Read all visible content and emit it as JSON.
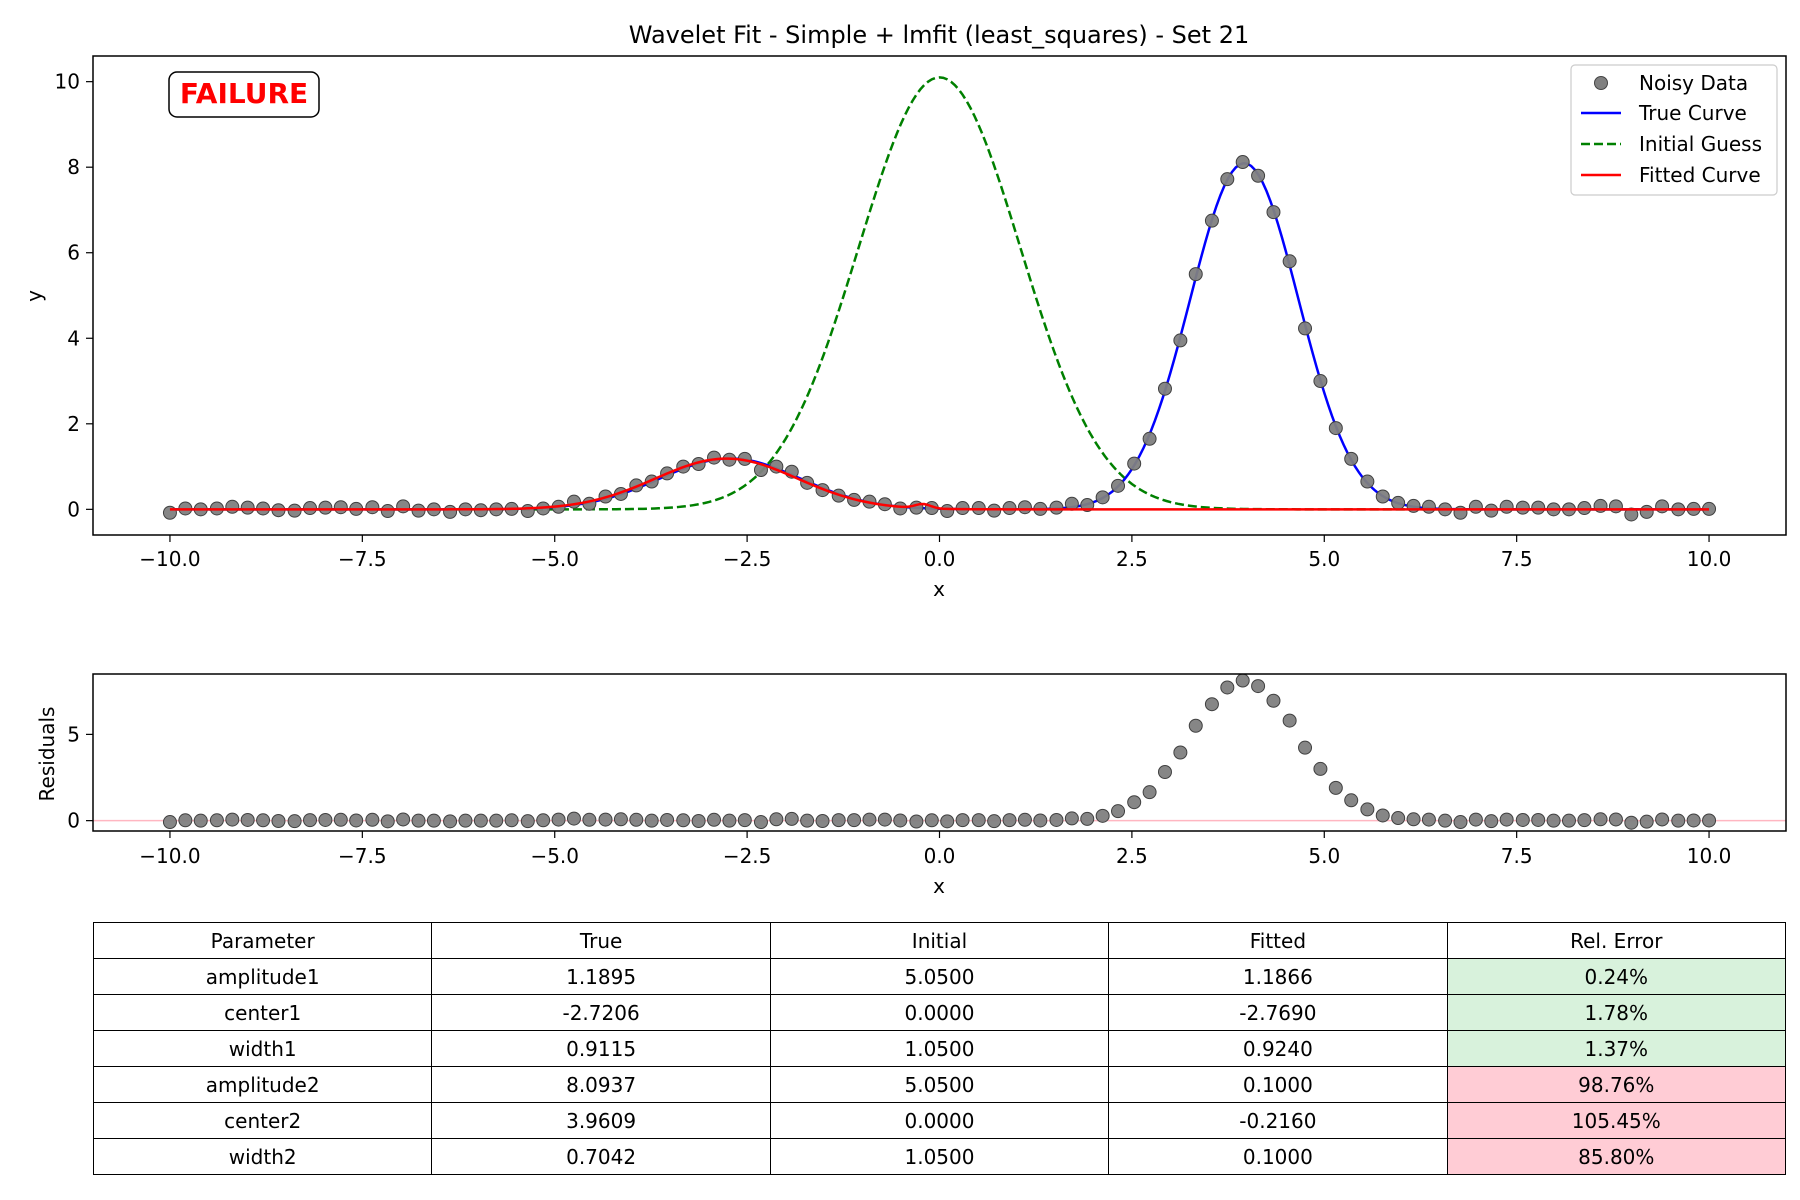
{
  "chart_data": [
    {
      "type": "line",
      "title": "Wavelet Fit - Simple + lmfit (least_squares) - Set 21",
      "xlabel": "x",
      "ylabel": "y",
      "xlim": [
        -11,
        11
      ],
      "ylim": [
        -0.6,
        10.6
      ],
      "xticks": [
        -10.0,
        -7.5,
        -5.0,
        -2.5,
        0.0,
        2.5,
        5.0,
        7.5,
        10.0
      ],
      "xtick_labels": [
        "−10.0",
        "−7.5",
        "−5.0",
        "−2.5",
        "0.0",
        "2.5",
        "5.0",
        "7.5",
        "10.0"
      ],
      "yticks": [
        0,
        2,
        4,
        6,
        8,
        10
      ],
      "ytick_labels": [
        "0",
        "2",
        "4",
        "6",
        "8",
        "10"
      ],
      "grid": false,
      "legend_position": "top-right",
      "badge": "FAILURE",
      "series": [
        {
          "name": "Noisy Data",
          "style": "scatter",
          "color": "#808080",
          "x": [
            -10.0,
            -9.8,
            -9.6,
            -9.39,
            -9.19,
            -8.99,
            -8.79,
            -8.59,
            -8.38,
            -8.18,
            -7.98,
            -7.78,
            -7.58,
            -7.37,
            -7.17,
            -6.97,
            -6.77,
            -6.57,
            -6.36,
            -6.16,
            -5.96,
            -5.76,
            -5.56,
            -5.35,
            -5.15,
            -4.95,
            -4.75,
            -4.55,
            -4.34,
            -4.14,
            -3.94,
            -3.74,
            -3.54,
            -3.33,
            -3.13,
            -2.93,
            -2.73,
            -2.53,
            -2.32,
            -2.12,
            -1.92,
            -1.72,
            -1.52,
            -1.31,
            -1.11,
            -0.91,
            -0.71,
            -0.51,
            -0.3,
            -0.1,
            0.1,
            0.3,
            0.51,
            0.71,
            0.91,
            1.11,
            1.31,
            1.52,
            1.72,
            1.92,
            2.12,
            2.32,
            2.53,
            2.73,
            2.93,
            3.13,
            3.33,
            3.54,
            3.74,
            3.94,
            4.14,
            4.34,
            4.55,
            4.75,
            4.95,
            5.15,
            5.35,
            5.56,
            5.76,
            5.96,
            6.16,
            6.36,
            6.57,
            6.77,
            6.97,
            7.17,
            7.37,
            7.58,
            7.78,
            7.98,
            8.18,
            8.38,
            8.59,
            8.79,
            8.99,
            9.19,
            9.39,
            9.6,
            9.8,
            10.0
          ],
          "y": [
            -0.08,
            0.02,
            0.0,
            0.02,
            0.06,
            0.04,
            0.02,
            -0.02,
            -0.03,
            0.03,
            0.04,
            0.05,
            0.01,
            0.05,
            -0.04,
            0.07,
            -0.03,
            0.0,
            -0.06,
            0.0,
            -0.02,
            0.0,
            0.01,
            -0.04,
            0.02,
            0.06,
            0.18,
            0.13,
            0.3,
            0.36,
            0.56,
            0.65,
            0.84,
            1.0,
            1.06,
            1.21,
            1.16,
            1.18,
            0.92,
            1.0,
            0.88,
            0.62,
            0.45,
            0.32,
            0.22,
            0.18,
            0.12,
            0.02,
            0.04,
            0.03,
            -0.04,
            0.03,
            0.03,
            -0.03,
            0.03,
            0.05,
            0.01,
            0.04,
            0.13,
            0.1,
            0.28,
            0.55,
            1.07,
            1.65,
            2.82,
            3.95,
            5.5,
            6.75,
            7.72,
            8.12,
            7.8,
            6.95,
            5.8,
            4.23,
            3.0,
            1.9,
            1.18,
            0.65,
            0.3,
            0.15,
            0.08,
            0.06,
            0.0,
            -0.08,
            0.06,
            -0.03,
            0.06,
            0.04,
            0.04,
            0.0,
            0.0,
            0.03,
            0.08,
            0.07,
            -0.12,
            -0.06,
            0.07,
            0.0,
            0.01,
            0.01
          ]
        },
        {
          "name": "True Curve",
          "style": "solid",
          "color": "#0000ff",
          "components": [
            {
              "amplitude": 1.1895,
              "center": -2.7206,
              "width": 0.9115
            },
            {
              "amplitude": 8.0937,
              "center": 3.9609,
              "width": 0.7042
            }
          ]
        },
        {
          "name": "Initial Guess",
          "style": "dashed",
          "color": "#008000",
          "components": [
            {
              "amplitude": 5.05,
              "center": 0.0,
              "width": 1.05
            },
            {
              "amplitude": 5.05,
              "center": 0.0,
              "width": 1.05
            }
          ]
        },
        {
          "name": "Fitted Curve",
          "style": "solid",
          "color": "#ff0000",
          "components": [
            {
              "amplitude": 1.1866,
              "center": -2.769,
              "width": 0.924
            },
            {
              "amplitude": 0.1,
              "center": -0.216,
              "width": 0.1
            }
          ]
        }
      ]
    },
    {
      "type": "scatter",
      "title": "",
      "xlabel": "x",
      "ylabel": "Residuals",
      "xlim": [
        -11,
        11
      ],
      "ylim": [
        -0.6,
        8.5
      ],
      "xticks": [
        -10.0,
        -7.5,
        -5.0,
        -2.5,
        0.0,
        2.5,
        5.0,
        7.5,
        10.0
      ],
      "xtick_labels": [
        "−10.0",
        "−7.5",
        "−5.0",
        "−2.5",
        "0.0",
        "2.5",
        "5.0",
        "7.5",
        "10.0"
      ],
      "yticks": [
        0,
        5
      ],
      "ytick_labels": [
        "0",
        "5"
      ],
      "grid": false,
      "reference_line": {
        "y": 0,
        "color": "#ffb6c1"
      },
      "series": [
        {
          "style": "scatter",
          "color": "#808080",
          "x": [
            -10.0,
            -9.8,
            -9.6,
            -9.39,
            -9.19,
            -8.99,
            -8.79,
            -8.59,
            -8.38,
            -8.18,
            -7.98,
            -7.78,
            -7.58,
            -7.37,
            -7.17,
            -6.97,
            -6.77,
            -6.57,
            -6.36,
            -6.16,
            -5.96,
            -5.76,
            -5.56,
            -5.35,
            -5.15,
            -4.95,
            -4.75,
            -4.55,
            -4.34,
            -4.14,
            -3.94,
            -3.74,
            -3.54,
            -3.33,
            -3.13,
            -2.93,
            -2.73,
            -2.53,
            -2.32,
            -2.12,
            -1.92,
            -1.72,
            -1.52,
            -1.31,
            -1.11,
            -0.91,
            -0.71,
            -0.51,
            -0.3,
            -0.1,
            0.1,
            0.3,
            0.51,
            0.71,
            0.91,
            1.11,
            1.31,
            1.52,
            1.72,
            1.92,
            2.12,
            2.32,
            2.53,
            2.73,
            2.93,
            3.13,
            3.33,
            3.54,
            3.74,
            3.94,
            4.14,
            4.34,
            4.55,
            4.75,
            4.95,
            5.15,
            5.35,
            5.56,
            5.76,
            5.96,
            6.16,
            6.36,
            6.57,
            6.77,
            6.97,
            7.17,
            7.37,
            7.58,
            7.78,
            7.98,
            8.18,
            8.38,
            8.59,
            8.79,
            8.99,
            9.19,
            9.39,
            9.6,
            9.8,
            10.0
          ],
          "y": [
            -0.08,
            0.02,
            0.0,
            0.02,
            0.06,
            0.04,
            0.02,
            -0.02,
            -0.03,
            0.03,
            0.04,
            0.05,
            0.01,
            0.05,
            -0.04,
            0.07,
            0.0,
            0.0,
            -0.04,
            0.0,
            0.0,
            0.0,
            0.02,
            -0.03,
            0.02,
            0.06,
            0.12,
            0.05,
            0.06,
            0.08,
            0.05,
            0.0,
            0.04,
            0.02,
            -0.02,
            0.05,
            0.0,
            0.03,
            -0.08,
            0.08,
            0.1,
            0.0,
            -0.02,
            0.03,
            0.03,
            0.06,
            0.06,
            0.01,
            -0.05,
            0.02,
            -0.04,
            0.03,
            0.03,
            -0.03,
            0.03,
            0.05,
            0.01,
            0.04,
            0.13,
            0.1,
            0.28,
            0.55,
            1.07,
            1.65,
            2.82,
            3.95,
            5.5,
            6.75,
            7.72,
            8.12,
            7.8,
            6.95,
            5.8,
            4.23,
            3.0,
            1.9,
            1.18,
            0.65,
            0.3,
            0.15,
            0.08,
            0.06,
            0.0,
            -0.08,
            0.06,
            -0.03,
            0.06,
            0.04,
            0.04,
            0.0,
            0.0,
            0.03,
            0.08,
            0.07,
            -0.12,
            -0.06,
            0.07,
            0.0,
            0.01,
            0.01
          ]
        }
      ]
    },
    {
      "type": "table",
      "columns": [
        "Parameter",
        "True",
        "Initial",
        "Fitted",
        "Rel. Error"
      ],
      "rows": [
        [
          "amplitude1",
          "1.1895",
          "5.0500",
          "1.1866",
          "0.24%"
        ],
        [
          "center1",
          "-2.7206",
          "0.0000",
          "-2.7690",
          "1.78%"
        ],
        [
          "width1",
          "0.9115",
          "1.0500",
          "0.9240",
          "1.37%"
        ],
        [
          "amplitude2",
          "8.0937",
          "5.0500",
          "0.1000",
          "98.76%"
        ],
        [
          "center2",
          "3.9609",
          "0.0000",
          "-0.2160",
          "105.45%"
        ],
        [
          "width2",
          "0.7042",
          "1.0500",
          "0.1000",
          "85.80%"
        ]
      ],
      "error_status": [
        "good",
        "good",
        "good",
        "bad",
        "bad",
        "bad"
      ],
      "status_colors": {
        "good": "#d8f2dc",
        "bad": "#ffccd5"
      }
    }
  ]
}
